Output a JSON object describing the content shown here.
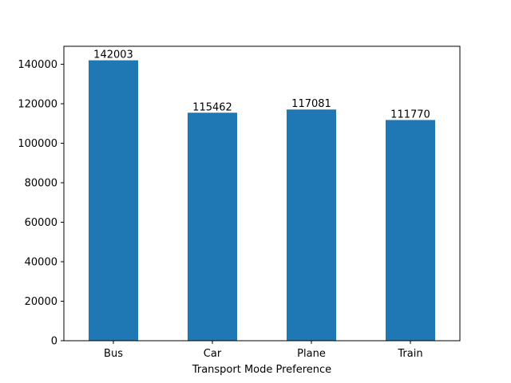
{
  "chart_data": {
    "type": "bar",
    "title": "",
    "xlabel": "Transport Mode Preference",
    "ylabel": "",
    "categories": [
      "Bus",
      "Car",
      "Plane",
      "Train"
    ],
    "values": [
      142003,
      115462,
      117081,
      111770
    ],
    "data_labels": [
      "142003",
      "115462",
      "117081",
      "111770"
    ],
    "ylim": [
      0,
      149103
    ],
    "yticks": [
      0,
      20000,
      40000,
      60000,
      80000,
      100000,
      120000,
      140000
    ],
    "ytick_labels": [
      "0",
      "20000",
      "40000",
      "60000",
      "80000",
      "100000",
      "120000",
      "140000"
    ],
    "bar_color": "#1f77b4",
    "grid": false,
    "legend": "none"
  }
}
